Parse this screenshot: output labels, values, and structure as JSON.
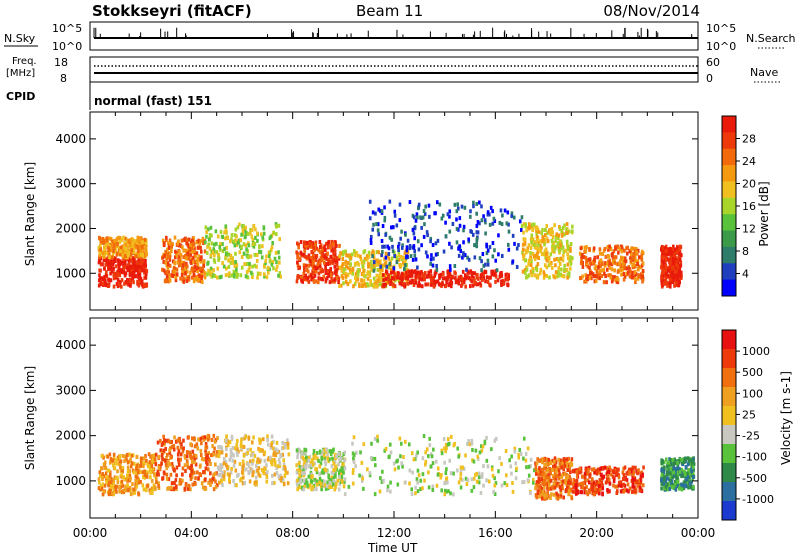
{
  "header": {
    "station": "Stokkseyri (fitACF)",
    "beam": "Beam 11",
    "date": "08/Nov/2014"
  },
  "nsky": {
    "label": "N.Sky",
    "tick_top": "10^5",
    "tick_bottom": "10^0",
    "right_label": "N.Search",
    "right_top": "10^5",
    "right_bottom": "10^0"
  },
  "freq": {
    "label_line1": "Freq.",
    "label_line2": "[MHz]",
    "tick_top": "18",
    "tick_bottom": "8",
    "right_top": "60",
    "right_bottom": "0",
    "right_label": "Nave"
  },
  "cpid": {
    "label": "CPID",
    "mode": "normal (fast) 151"
  },
  "chart_data": [
    {
      "type": "heatmap",
      "title": "",
      "ylabel": "Slant Range [km]",
      "xlabel": "",
      "yticks": [
        "4000",
        "3000",
        "2000",
        "1000"
      ],
      "xlim_hours": [
        0,
        24
      ],
      "ylim": [
        180,
        4600
      ],
      "colorbar_label": "Power [dB]",
      "colorbar_ticks": [
        "28",
        "24",
        "20",
        "16",
        "12",
        "8",
        "4"
      ],
      "colors": [
        "#0000ff",
        "#1f3fbf",
        "#2e7d6b",
        "#3b9b4a",
        "#58c23a",
        "#a8d52a",
        "#f0c020",
        "#f59a10",
        "#f26a0c",
        "#ee3a0a",
        "#ea1a0a"
      ],
      "bands": [
        {
          "start": 0.3,
          "end": 2.2,
          "low": 700,
          "high": 1350,
          "level": 10
        },
        {
          "start": 0.3,
          "end": 2.2,
          "low": 1350,
          "high": 1800,
          "level": 7
        },
        {
          "start": 2.8,
          "end": 4.5,
          "low": 800,
          "high": 1800,
          "level": 8
        },
        {
          "start": 4.5,
          "end": 7.5,
          "low": 900,
          "high": 2100,
          "level": 5
        },
        {
          "start": 8.1,
          "end": 9.8,
          "low": 800,
          "high": 1700,
          "level": 9
        },
        {
          "start": 9.8,
          "end": 12.5,
          "low": 700,
          "high": 1500,
          "level": 6
        },
        {
          "start": 11.5,
          "end": 16.5,
          "low": 700,
          "high": 1050,
          "level": 10
        },
        {
          "start": 11.0,
          "end": 17.0,
          "low": 1050,
          "high": 2600,
          "level": 1
        },
        {
          "start": 17.0,
          "end": 19.0,
          "low": 900,
          "high": 2100,
          "level": 6
        },
        {
          "start": 19.3,
          "end": 21.8,
          "low": 800,
          "high": 1600,
          "level": 8
        },
        {
          "start": 22.5,
          "end": 23.3,
          "low": 700,
          "high": 1600,
          "level": 10
        }
      ]
    },
    {
      "type": "heatmap",
      "title": "",
      "ylabel": "Slant Range [km]",
      "xlabel": "Time UT",
      "yticks": [
        "4000",
        "3000",
        "2000",
        "1000"
      ],
      "xticks": [
        "00:00",
        "04:00",
        "08:00",
        "12:00",
        "16:00",
        "20:00",
        "00:00"
      ],
      "xlim_hours": [
        0,
        24
      ],
      "ylim": [
        180,
        4600
      ],
      "colorbar_label": "Velocity [m s-1]",
      "colorbar_ticks": [
        "1000",
        "500",
        "100",
        "25",
        "-25",
        "-100",
        "-500",
        "-1000"
      ],
      "colors": [
        "#1a3ad0",
        "#2a6fa0",
        "#2f8a4a",
        "#58c23a",
        "#c8c8c0",
        "#f0c020",
        "#f0a020",
        "#f07010",
        "#ee3a0a",
        "#e81010"
      ],
      "bands": [
        {
          "start": 0.3,
          "end": 2.5,
          "low": 700,
          "high": 1600,
          "level": 6
        },
        {
          "start": 2.5,
          "end": 5.0,
          "low": 800,
          "high": 2000,
          "level": 7
        },
        {
          "start": 5.0,
          "end": 7.8,
          "low": 900,
          "high": 2000,
          "level": 5
        },
        {
          "start": 8.1,
          "end": 10.0,
          "low": 800,
          "high": 1700,
          "level": 4
        },
        {
          "start": 10.0,
          "end": 17.5,
          "low": 700,
          "high": 2000,
          "level": 4
        },
        {
          "start": 17.5,
          "end": 19.0,
          "low": 600,
          "high": 1500,
          "level": 7
        },
        {
          "start": 19.0,
          "end": 21.8,
          "low": 700,
          "high": 1300,
          "level": 8
        },
        {
          "start": 22.5,
          "end": 23.8,
          "low": 800,
          "high": 1500,
          "level": 2
        }
      ]
    }
  ]
}
